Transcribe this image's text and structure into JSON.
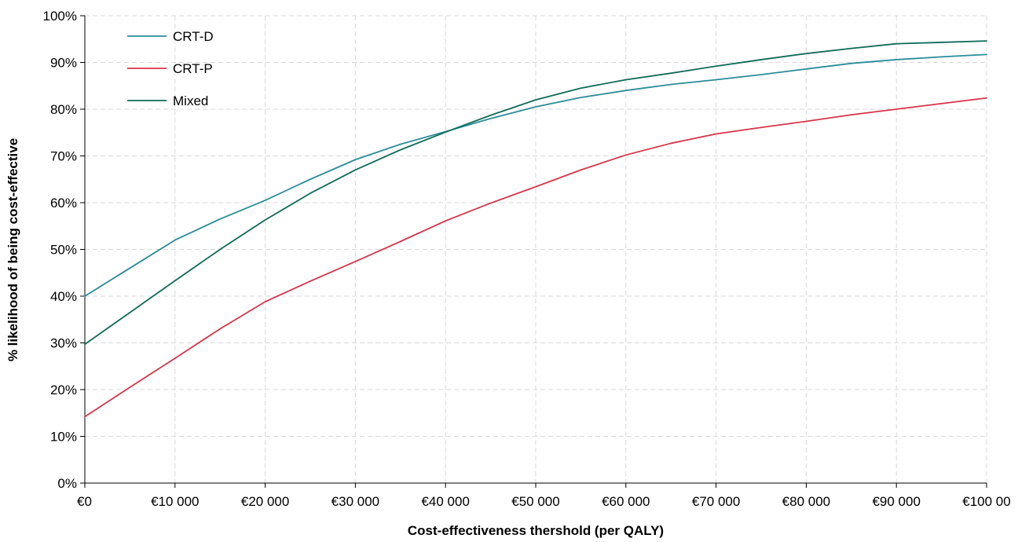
{
  "chart_data": {
    "type": "line",
    "xlabel": "Cost-effectiveness thershold (per QALY)",
    "ylabel": "% likelihood of being cost-effective",
    "xlim": [
      0,
      100000
    ],
    "ylim": [
      0,
      100
    ],
    "x_ticks": [
      0,
      10000,
      20000,
      30000,
      40000,
      50000,
      60000,
      70000,
      80000,
      90000,
      100000
    ],
    "x_tick_labels": [
      "€0",
      "€10 000",
      "€20 000",
      "€30 000",
      "€40 000",
      "€50 000",
      "€60 000",
      "€70 000",
      "€80 000",
      "€90 000",
      "€100 00"
    ],
    "y_ticks": [
      0,
      10,
      20,
      30,
      40,
      50,
      60,
      70,
      80,
      90,
      100
    ],
    "y_tick_labels": [
      "0%",
      "10%",
      "20%",
      "30%",
      "40%",
      "50%",
      "60%",
      "70%",
      "80%",
      "90%",
      "100%"
    ],
    "grid": true,
    "legend_position": "top-left",
    "x": [
      0,
      5000,
      10000,
      15000,
      20000,
      25000,
      30000,
      35000,
      40000,
      45000,
      50000,
      55000,
      60000,
      65000,
      70000,
      75000,
      80000,
      85000,
      90000,
      95000,
      100000
    ],
    "series": [
      {
        "name": "CRT-D",
        "color": "#2a8c9a",
        "values": [
          40,
          46,
          52,
          56.5,
          60.5,
          65,
          69.2,
          72.5,
          75.2,
          78,
          80.5,
          82.5,
          84,
          85.3,
          86.3,
          87.4,
          88.6,
          89.8,
          90.6,
          91.2,
          91.7
        ]
      },
      {
        "name": "CRT-P",
        "color": "#d9344a",
        "values": [
          14.2,
          20.5,
          26.7,
          33,
          38.8,
          43.2,
          47.4,
          51.7,
          56.1,
          59.9,
          63.4,
          67,
          70.2,
          72.7,
          74.7,
          76.1,
          77.4,
          78.8,
          80,
          81.2,
          82.4
        ]
      },
      {
        "name": "Mixed",
        "color": "#0f6b57",
        "values": [
          29.7,
          36.5,
          43.3,
          50,
          56.3,
          62,
          67,
          71.3,
          75.1,
          78.7,
          82,
          84.5,
          86.3,
          87.7,
          89.2,
          90.6,
          91.9,
          93,
          94,
          94.3,
          94.6
        ]
      }
    ]
  }
}
